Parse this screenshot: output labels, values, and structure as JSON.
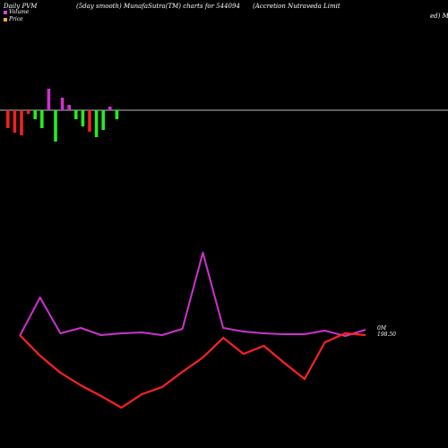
{
  "header": {
    "left": "Daily PVM",
    "middle": "(5day smooth) MunafaSutra(TM) charts for 544094",
    "right_line1": "(Accretion  Nutraveda  Limit",
    "right_line2": "ed) M"
  },
  "legend": [
    {
      "label": "Volume",
      "color": "#dd44dd"
    },
    {
      "label": "Price",
      "color": "#ffaa44"
    }
  ],
  "end_labels": {
    "volume": "0M",
    "price": "198.50"
  },
  "colors": {
    "background": "#000000",
    "volume_line": "#cc33cc",
    "price_line": "#ff2222",
    "bar_up": "#22ee22",
    "bar_down": "#ee2222",
    "bar_magenta": "#cc33cc",
    "baseline": "#bbbbbb"
  },
  "chart_data": {
    "type": "line",
    "series": [
      {
        "name": "Volume",
        "values": [
          375,
          332,
          372,
          366,
          374,
          372,
          371,
          374,
          367,
          282,
          366,
          370,
          372,
          373,
          373,
          369,
          375,
          368
        ]
      },
      {
        "name": "Price",
        "values": [
          374,
          397,
          416,
          430,
          442,
          455,
          440,
          432,
          415,
          399,
          377,
          395,
          386,
          405,
          423,
          382,
          372,
          374
        ]
      }
    ],
    "pvm_bars": [
      {
        "value": -20,
        "color": "down"
      },
      {
        "value": -25,
        "color": "down"
      },
      {
        "value": -28,
        "color": "down"
      },
      {
        "value": -4,
        "color": "down"
      },
      {
        "value": -10,
        "color": "up"
      },
      {
        "value": -20,
        "color": "up"
      },
      {
        "value": 24,
        "color": "magenta"
      },
      {
        "value": -35,
        "color": "up"
      },
      {
        "value": 14,
        "color": "magenta"
      },
      {
        "value": 6,
        "color": "magenta"
      },
      {
        "value": -10,
        "color": "up"
      },
      {
        "value": -18,
        "color": "up"
      },
      {
        "value": -24,
        "color": "down"
      },
      {
        "value": -30,
        "color": "up"
      },
      {
        "value": -22,
        "color": "up"
      },
      {
        "value": 4,
        "color": "magenta"
      },
      {
        "value": -10,
        "color": "up"
      }
    ]
  }
}
